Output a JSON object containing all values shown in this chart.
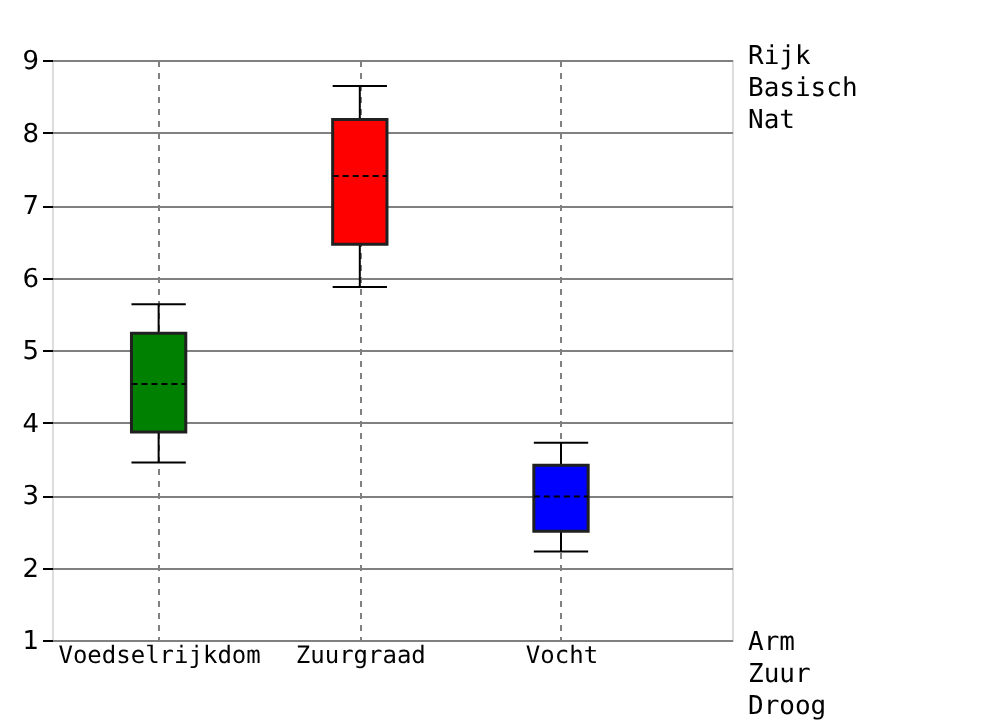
{
  "chart_data": {
    "type": "box",
    "categories": [
      "Voedselrijkdom",
      "Zuurgraad",
      "Vocht"
    ],
    "boxes": [
      {
        "low": 3.45,
        "q1": 3.87,
        "median": 4.53,
        "q3": 5.23,
        "high": 5.63
      },
      {
        "low": 5.87,
        "q1": 6.46,
        "median": 7.4,
        "q3": 8.18,
        "high": 8.64
      },
      {
        "low": 2.22,
        "q1": 2.5,
        "median": 2.98,
        "q3": 3.41,
        "high": 3.72
      }
    ],
    "colors": [
      "#008000",
      "#ff0000",
      "#0000ff"
    ],
    "ylim": [
      1,
      9
    ],
    "yticks": [
      1,
      2,
      3,
      4,
      5,
      6,
      7,
      8,
      9
    ],
    "grid": true,
    "annotations": [
      "Rijk\nBasisch\nNat",
      "Arm\nZuur\nDroog"
    ]
  }
}
